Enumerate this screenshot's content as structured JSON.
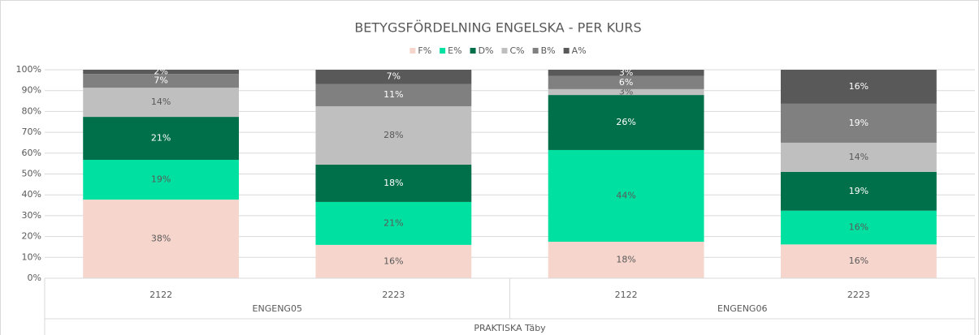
{
  "chart_data": {
    "type": "stacked_percent_bar",
    "title": "BETYGSFÖRDELNING ENGELSKA - PER KURS",
    "categories": [
      "2122",
      "2223",
      "2122",
      "2223"
    ],
    "groups": [
      {
        "label": "ENGENG05",
        "span": 2
      },
      {
        "label": "ENGENG06",
        "span": 2
      }
    ],
    "outer_label": "PRAKTISKA Täby",
    "series": [
      {
        "name": "F%",
        "color": "#f6d5cc",
        "values": [
          37.7,
          16.0,
          17.5,
          16.2
        ],
        "value_labels": [
          "38%",
          "16%",
          "18%",
          "16%"
        ]
      },
      {
        "name": "E%",
        "color": "#00e0a0",
        "values": [
          19.1,
          20.6,
          44.0,
          16.2
        ],
        "value_labels": [
          "19%",
          "21%",
          "44%",
          "16%"
        ]
      },
      {
        "name": "D%",
        "color": "#00704a",
        "values": [
          20.6,
          17.9,
          26.4,
          18.6
        ],
        "value_labels": [
          "21%",
          "18%",
          "26%",
          "19%"
        ]
      },
      {
        "name": "C%",
        "color": "#bfbfbf",
        "values": [
          14.0,
          28.0,
          2.8,
          14.0
        ],
        "value_labels": [
          "14%",
          "28%",
          "3%",
          "14%"
        ]
      },
      {
        "name": "B%",
        "color": "#808080",
        "values": [
          6.6,
          10.7,
          6.3,
          18.7
        ],
        "value_labels": [
          "7%",
          "11%",
          "6%",
          "19%"
        ]
      },
      {
        "name": "A%",
        "color": "#595959",
        "values": [
          2.0,
          6.8,
          3.0,
          16.3
        ],
        "value_labels": [
          "2%",
          "7%",
          "3%",
          "16%"
        ]
      }
    ],
    "ylim": [
      0,
      100
    ],
    "yticks": [
      {
        "value": 0,
        "label": "0%"
      },
      {
        "value": 10,
        "label": "10%"
      },
      {
        "value": 20,
        "label": "20%"
      },
      {
        "value": 30,
        "label": "30%"
      },
      {
        "value": 40,
        "label": "40%"
      },
      {
        "value": 50,
        "label": "50%"
      },
      {
        "value": 60,
        "label": "60%"
      },
      {
        "value": 70,
        "label": "70%"
      },
      {
        "value": 80,
        "label": "80%"
      },
      {
        "value": 90,
        "label": "90%"
      },
      {
        "value": 100,
        "label": "100%"
      }
    ],
    "grid": true,
    "legend": "top"
  }
}
